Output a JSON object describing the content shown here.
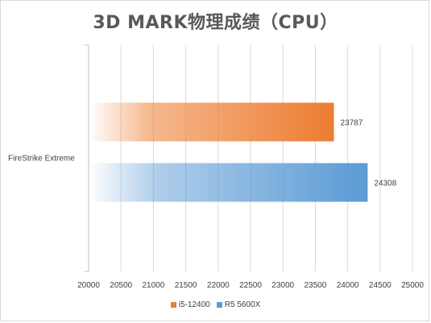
{
  "chart_data": {
    "type": "bar",
    "orientation": "horizontal",
    "title": "3D MARK物理成绩（CPU）",
    "categories": [
      "FireStrike Extreme"
    ],
    "series": [
      {
        "name": "i5-12400",
        "values": [
          23787
        ],
        "color": "#ED7D31"
      },
      {
        "name": "R5 5600X",
        "values": [
          24308
        ],
        "color": "#5B9BD5"
      }
    ],
    "x_ticks": [
      "20000",
      "20500",
      "21000",
      "21500",
      "22000",
      "22500",
      "23000",
      "23500",
      "24000",
      "24500",
      "25000"
    ],
    "xlim": [
      20000,
      25000
    ],
    "grid": true,
    "legend_position": "bottom"
  }
}
